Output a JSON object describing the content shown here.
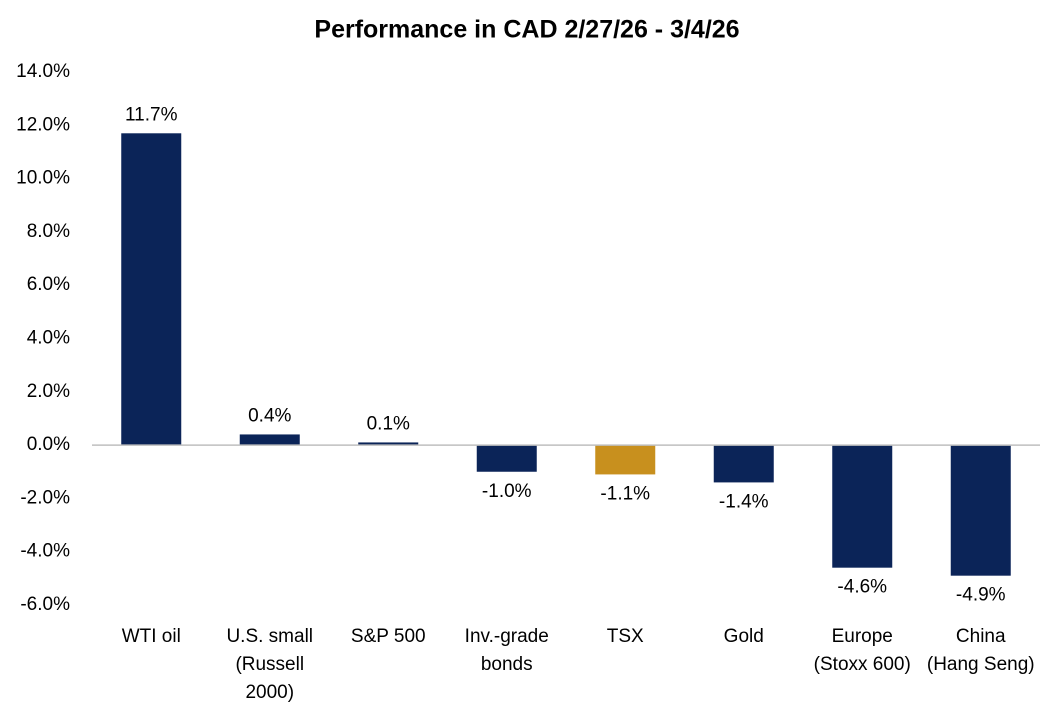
{
  "chart_data": {
    "type": "bar",
    "title": "Performance in CAD 2/27/26 - 3/4/26",
    "categories": [
      "WTI oil",
      "U.S. small\n(Russell\n2000)",
      "S&P 500",
      "Inv.-grade\nbonds",
      "TSX",
      "Gold",
      "Europe\n(Stoxx 600)",
      "China\n(Hang Seng)"
    ],
    "values": [
      11.7,
      0.4,
      0.1,
      -1.0,
      -1.1,
      -1.4,
      -4.6,
      -4.9
    ],
    "value_labels": [
      "11.7%",
      "0.4%",
      "0.1%",
      "-1.0%",
      "-1.1%",
      "-1.4%",
      "-4.6%",
      "-4.9%"
    ],
    "colors": [
      "#0b2458",
      "#0b2458",
      "#0b2458",
      "#0b2458",
      "#c8901e",
      "#0b2458",
      "#0b2458",
      "#0b2458"
    ],
    "ylim": [
      -6,
      14
    ],
    "yticks": [
      {
        "value": -6,
        "label": "-6.0%"
      },
      {
        "value": -4,
        "label": "-4.0%"
      },
      {
        "value": -2,
        "label": "-2.0%"
      },
      {
        "value": 0,
        "label": "0.0%"
      },
      {
        "value": 2,
        "label": "2.0%"
      },
      {
        "value": 4,
        "label": "4.0%"
      },
      {
        "value": 6,
        "label": "6.0%"
      },
      {
        "value": 8,
        "label": "8.0%"
      },
      {
        "value": 10,
        "label": "10.0%"
      },
      {
        "value": 12,
        "label": "12.0%"
      },
      {
        "value": 14,
        "label": "14.0%"
      }
    ],
    "grid": false
  }
}
